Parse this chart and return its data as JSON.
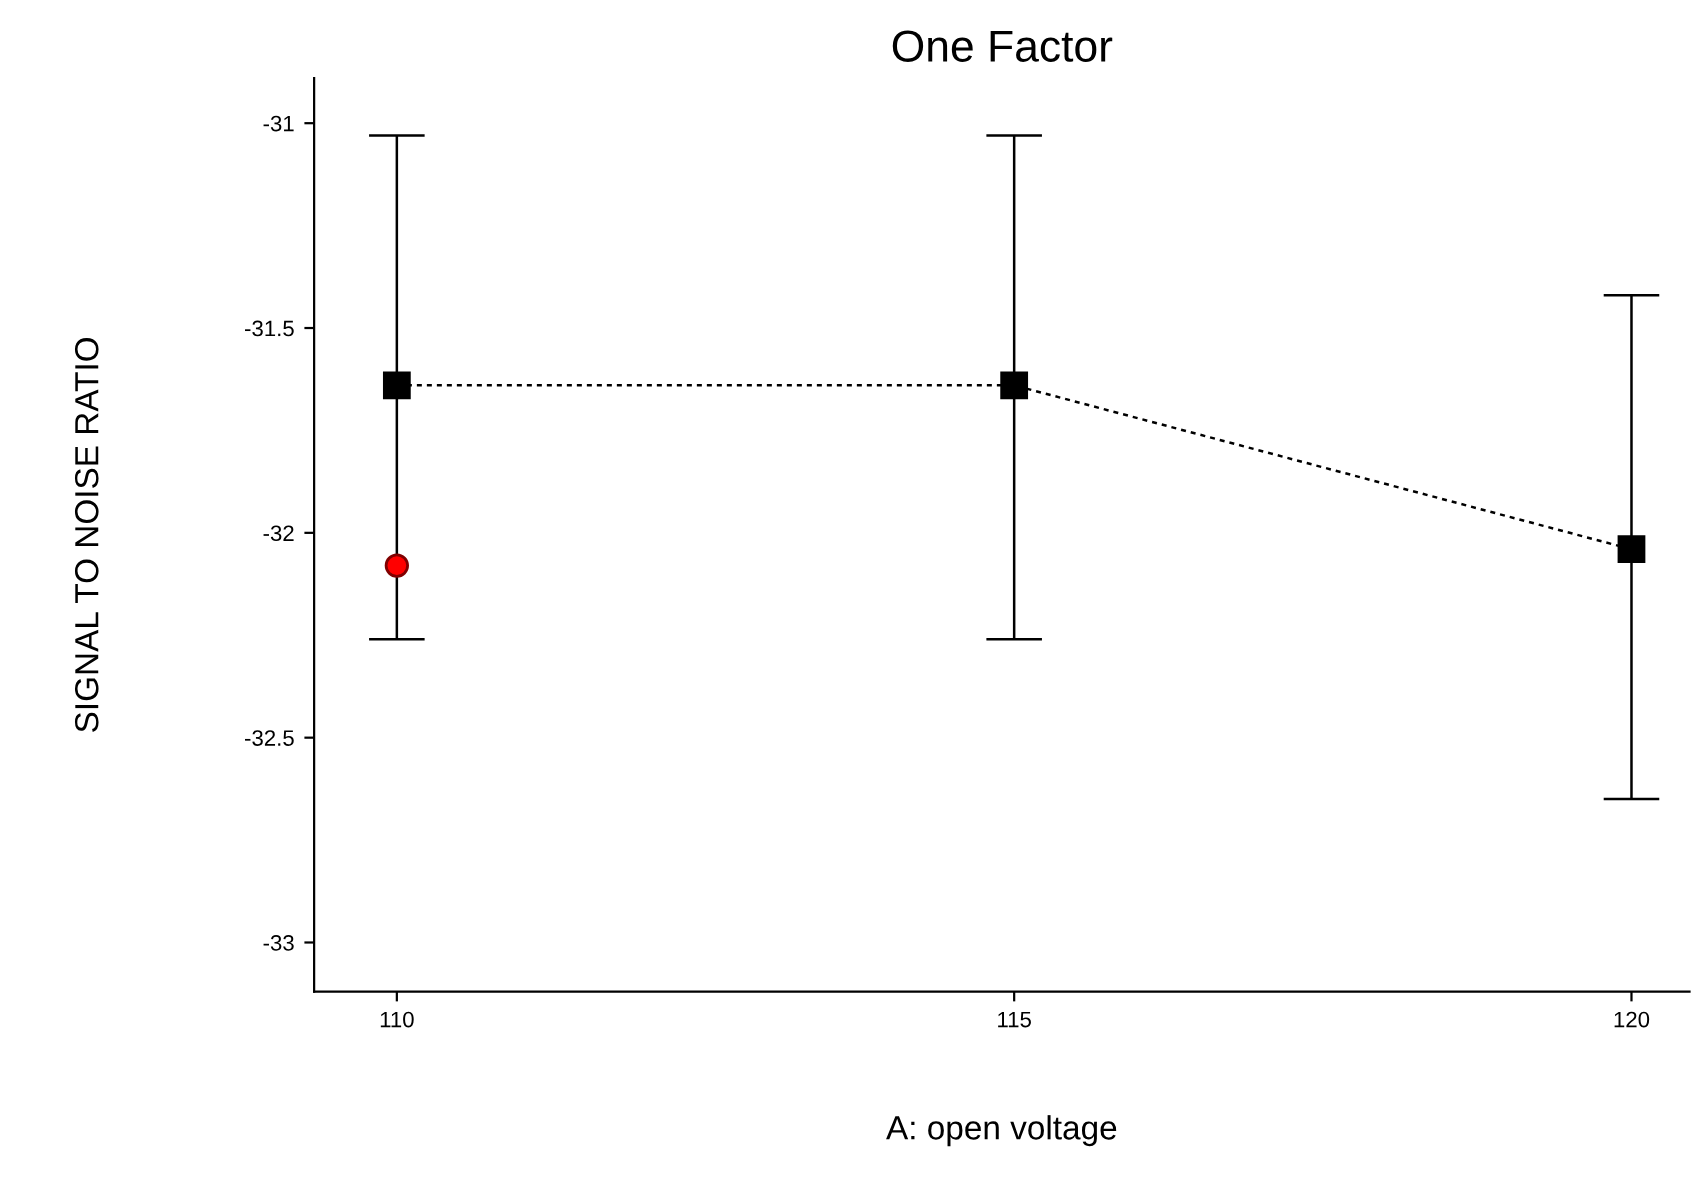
{
  "chart_data": {
    "type": "line",
    "title": "One Factor",
    "xlabel": "A: open voltage",
    "ylabel": "SIGNAL TO NOISE RATIO",
    "x": [
      110,
      115,
      120
    ],
    "xlim": [
      109.33,
      120.47
    ],
    "ylim": [
      -33.12,
      -30.89
    ],
    "xticks": [
      110,
      115,
      120
    ],
    "yticks": [
      {
        "value": -33,
        "label": "-33"
      },
      {
        "value": -32.5,
        "label": "-32.5"
      },
      {
        "value": -32,
        "label": "-32"
      },
      {
        "value": -31.5,
        "label": "-31.5"
      },
      {
        "value": -31,
        "label": "-31"
      }
    ],
    "grid": false,
    "legend": false,
    "series": [
      {
        "color": "#000000",
        "marker": "square",
        "line_style": "dotted",
        "values": [
          -31.64,
          -31.64,
          -32.04
        ],
        "errors": [
          [
            -32.26,
            -31.03
          ],
          [
            -32.26,
            -31.03
          ],
          [
            -32.65,
            -31.42
          ]
        ]
      },
      {
        "type": "scatter",
        "color": "#ff0000",
        "marker": "circle",
        "x": [
          110
        ],
        "values": [
          -32.08
        ]
      }
    ]
  }
}
